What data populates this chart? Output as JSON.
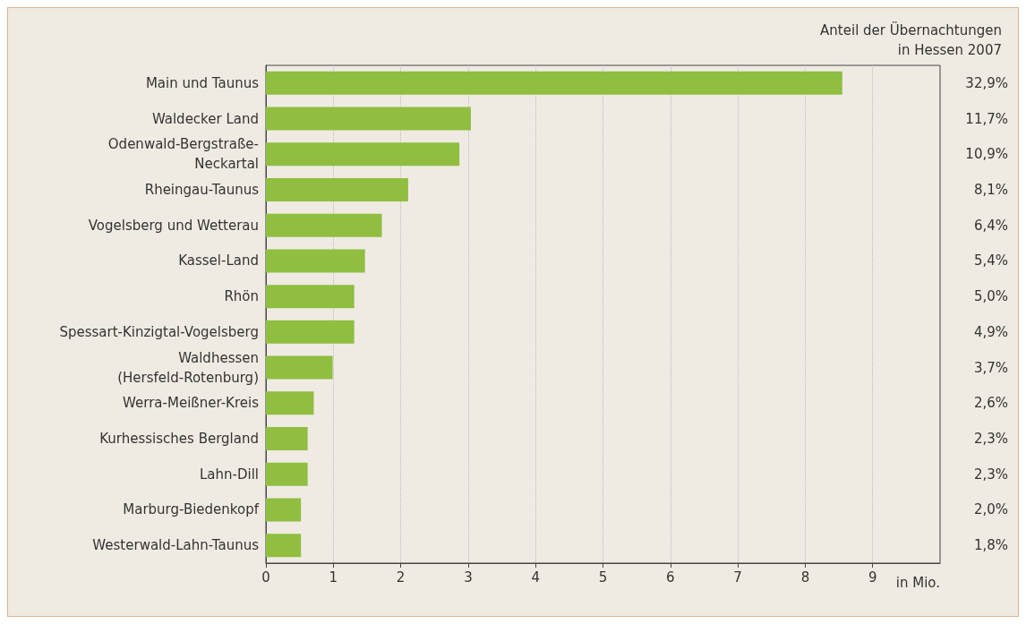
{
  "chart_data": {
    "type": "bar",
    "orientation": "horizontal",
    "categories": [
      "Main und Taunus",
      "Waldecker Land",
      "Odenwald-Bergstraße-\nNeckartal",
      "Rheingau-Taunus",
      "Vogelsberg und Wetterau",
      "Kassel-Land",
      "Rhön",
      "Spessart-Kinzigtal-Vogelsberg",
      "Waldhessen\n(Hersfeld-Rotenburg)",
      "Werra-Meißner-Kreis",
      "Kurhessisches Bergland",
      "Lahn-Dill",
      "Marburg-Biedenkopf",
      "Westerwald-Lahn-Taunus"
    ],
    "values": [
      8.55,
      3.04,
      2.87,
      2.11,
      1.72,
      1.47,
      1.31,
      1.31,
      0.99,
      0.71,
      0.62,
      0.62,
      0.52,
      0.52
    ],
    "color": "#8fbe40",
    "xlabel": "in Mio.",
    "xlim": [
      0,
      10
    ],
    "xticks": [
      0,
      1,
      2,
      3,
      4,
      5,
      6,
      7,
      8,
      9
    ],
    "grid": "x",
    "annotations": [
      "Anteil der Übernachtungen\nin Hessen 2007",
      "32,9%",
      "11,7%",
      "10,9%",
      "8,1%",
      "6,4%",
      "5,4%",
      "5,0%",
      "4,9%",
      "3,7%",
      "2,6%",
      "2,3%",
      "2,3%",
      "2,0%",
      "1,8%"
    ]
  }
}
